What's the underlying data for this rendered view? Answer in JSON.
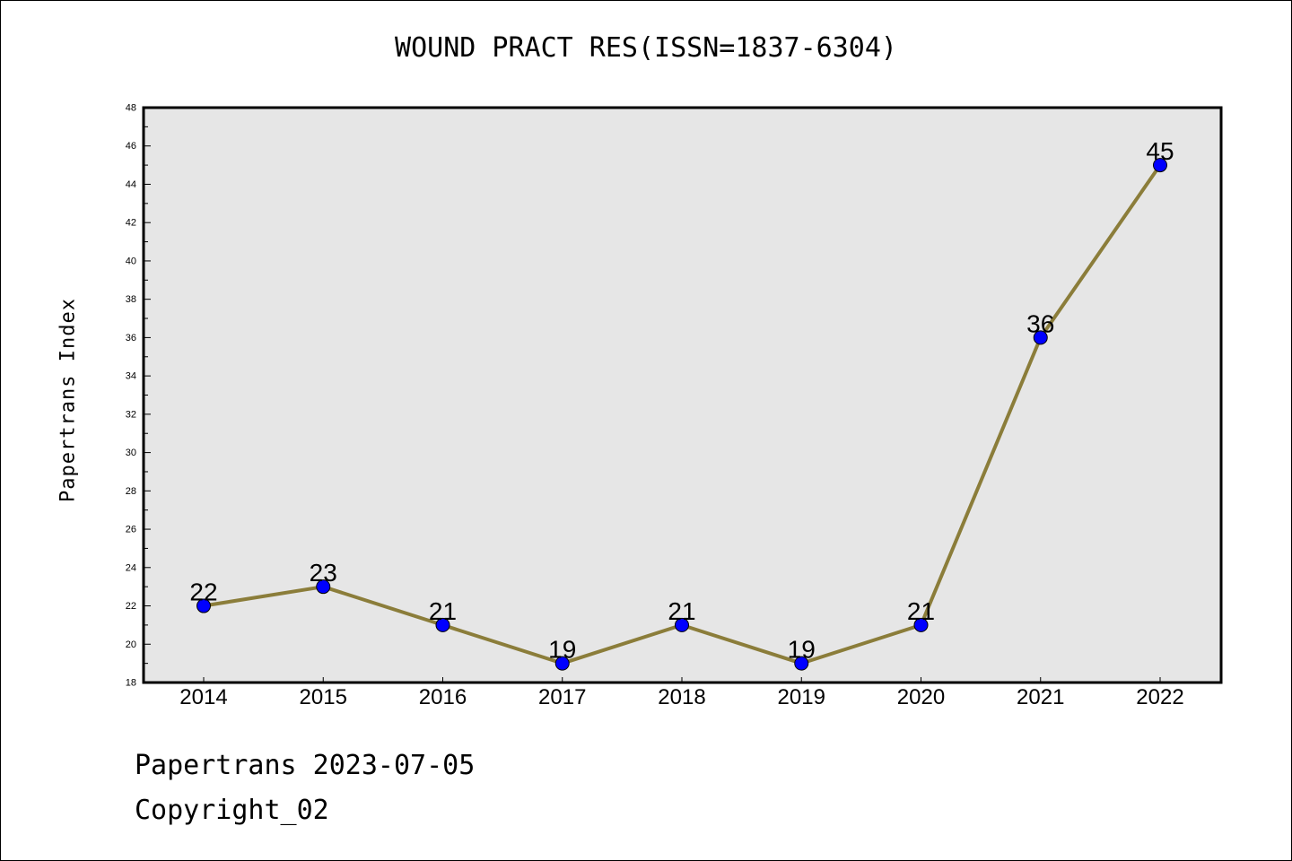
{
  "chart_data": {
    "type": "line",
    "title": "WOUND PRACT RES(ISSN=1837-6304)",
    "xlabel": "",
    "ylabel": "Papertrans Index",
    "categories": [
      "2014",
      "2015",
      "2016",
      "2017",
      "2018",
      "2019",
      "2020",
      "2021",
      "2022"
    ],
    "series": [
      {
        "values": [
          22,
          23,
          21,
          19,
          21,
          19,
          21,
          36,
          45
        ]
      }
    ],
    "data_labels": [
      "22",
      "23",
      "21",
      "19",
      "21",
      "19",
      "21",
      "36",
      "45"
    ],
    "ylim": [
      18,
      48
    ],
    "yticks": [
      "18",
      "20",
      "22",
      "24",
      "26",
      "28",
      "30",
      "32",
      "34",
      "36",
      "38",
      "40",
      "42",
      "44",
      "46",
      "48"
    ],
    "grid": false,
    "legend": "none",
    "colors": {
      "line": "#8B7D3A",
      "marker": "#0000FF",
      "plot_background": "#E6E6E6",
      "axes": "#000000"
    }
  },
  "footer": {
    "line1": "Papertrans 2023-07-05",
    "line2": "Copyright_02"
  }
}
